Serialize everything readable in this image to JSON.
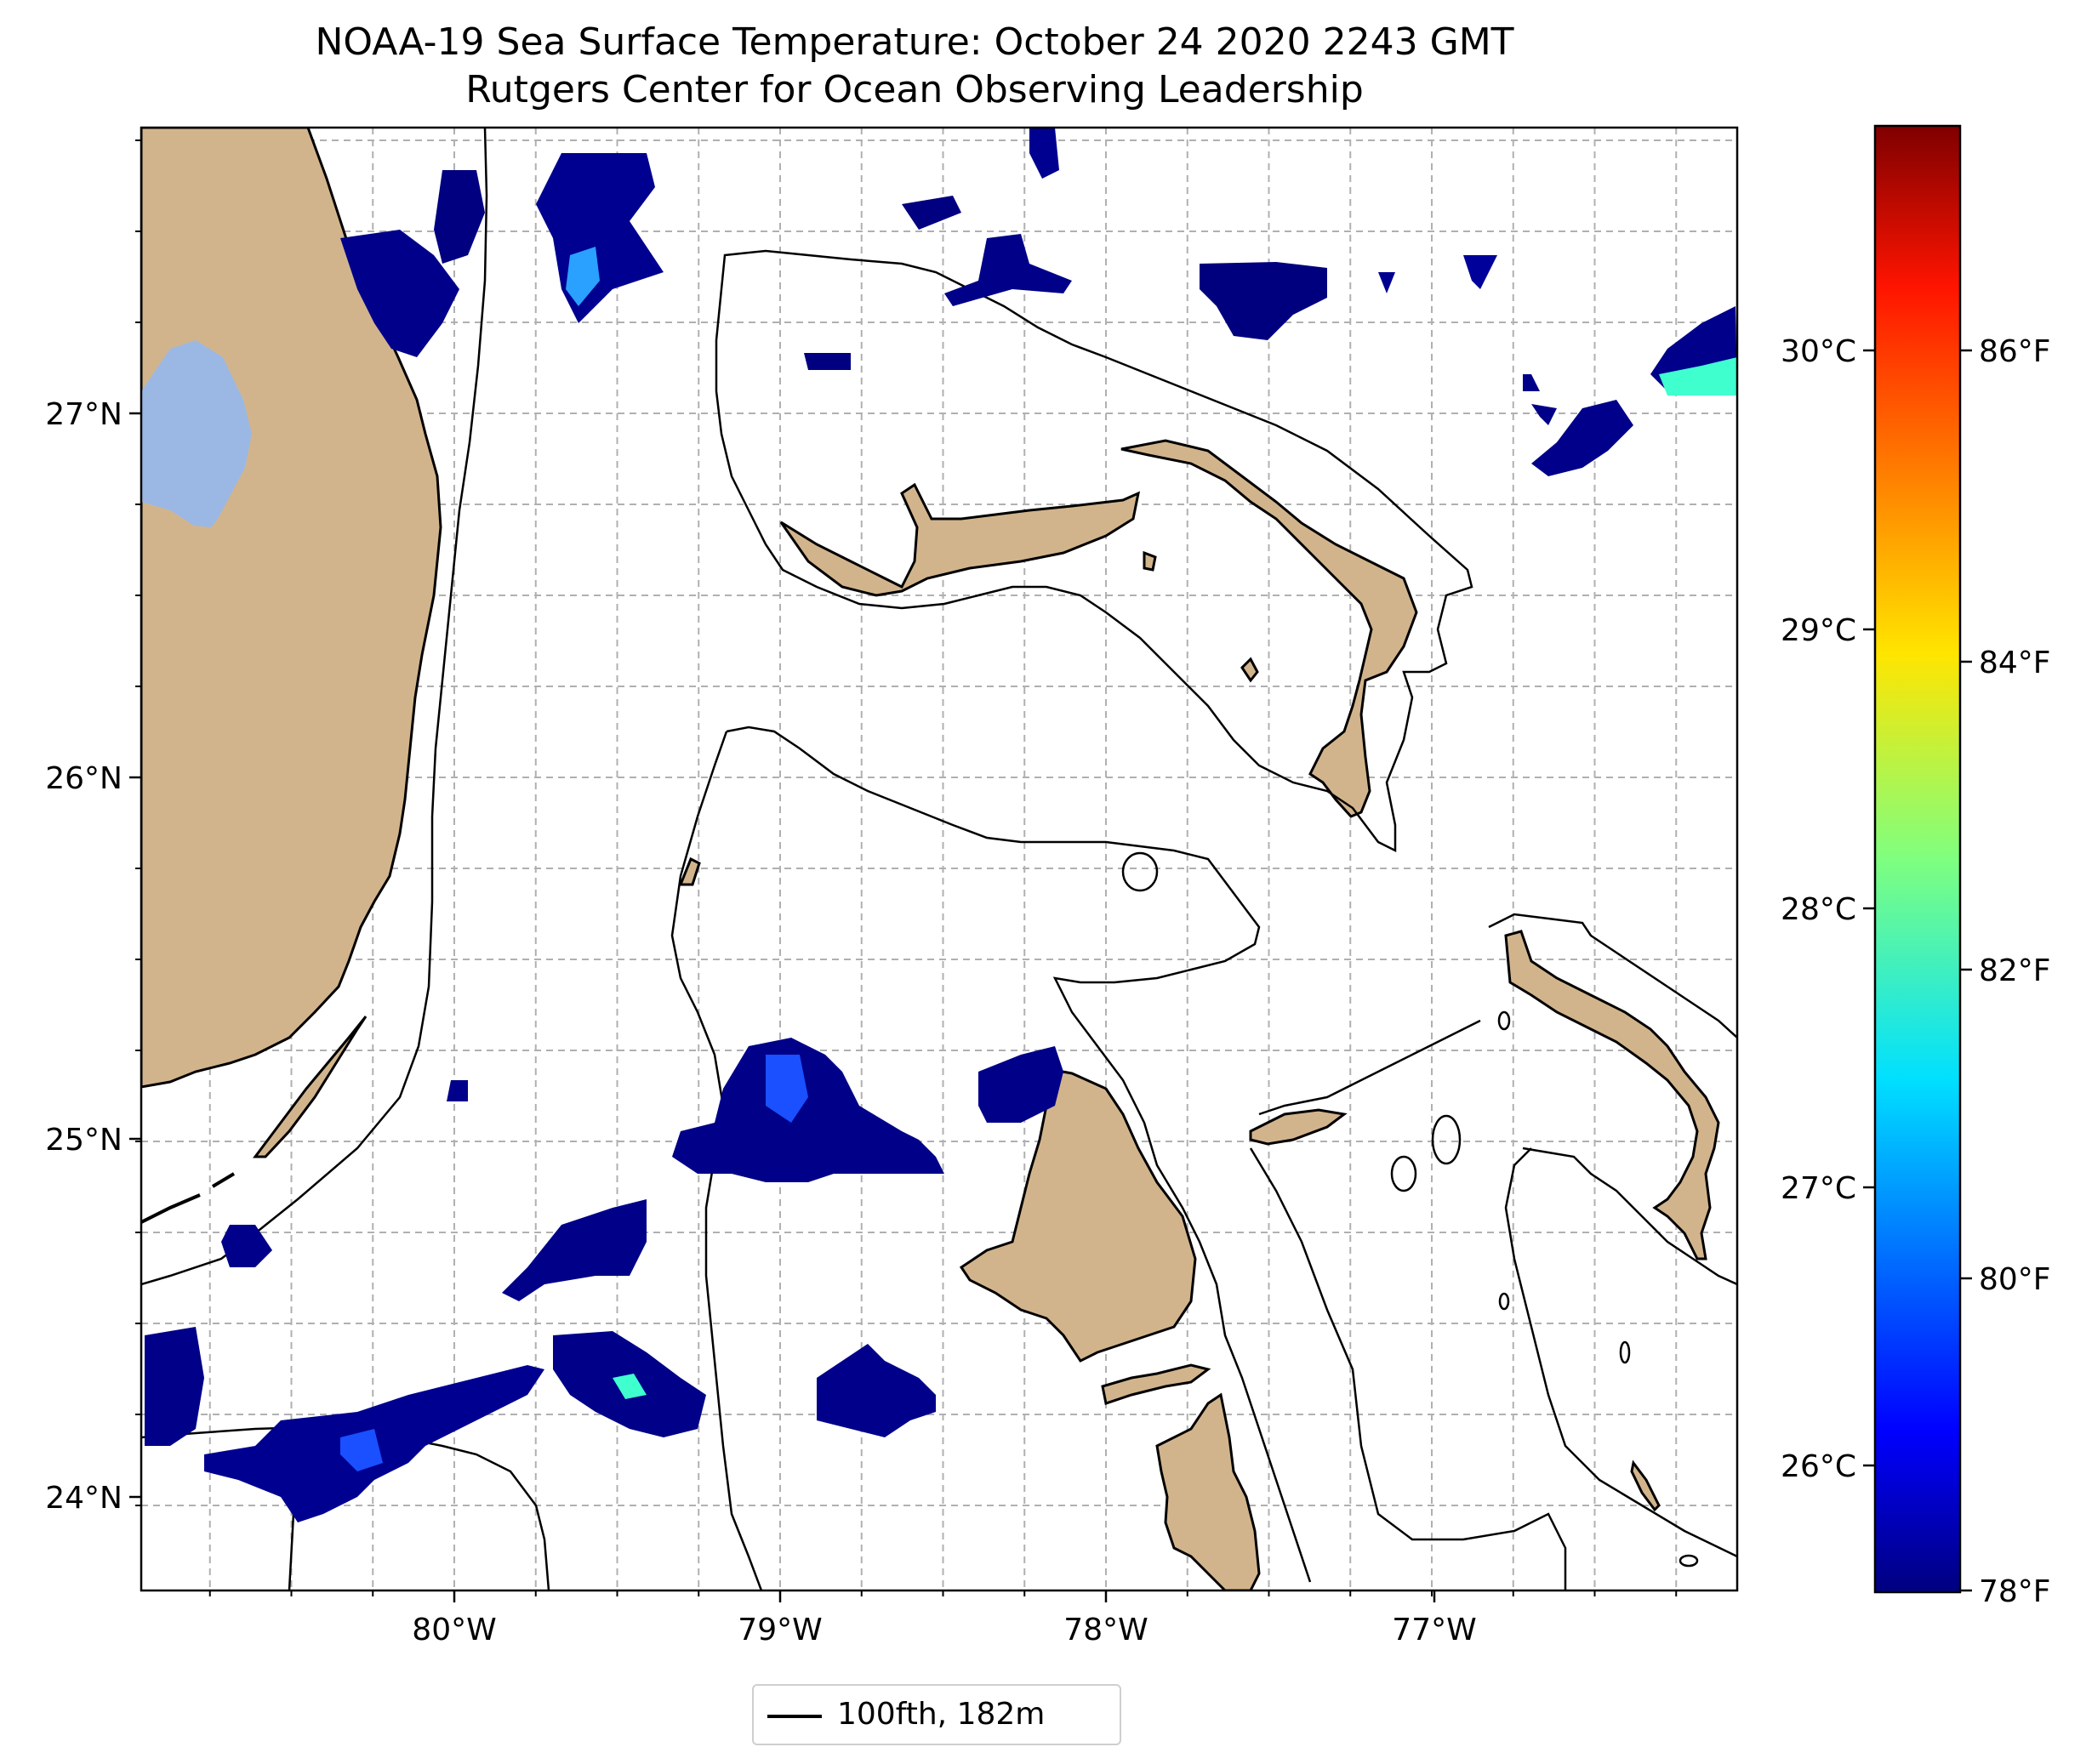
{
  "figure": {
    "title": "NOAA-19 Sea Surface Temperature: October 24 2020 2243 GMT",
    "subtitle": "Rutgers Center for Ocean Observing Leadership"
  },
  "map": {
    "lon_ticks": [
      "80°W",
      "79°W",
      "78°W",
      "77°W"
    ],
    "lat_ticks": [
      "27°N",
      "26°N",
      "25°N",
      "24°N"
    ],
    "gridlines": true,
    "land_color": "#d2b48c",
    "lake_color": "#9bb8e4",
    "coast_color": "#000000"
  },
  "colorbar": {
    "colormap": "jet",
    "celsius_ticks": [
      "30°C",
      "29°C",
      "28°C",
      "27°C",
      "26°C"
    ],
    "fahrenheit_ticks": [
      "86°F",
      "84°F",
      "82°F",
      "80°F",
      "78°F"
    ]
  },
  "legend": {
    "label": "100fth, 182m"
  },
  "chart_data": {
    "type": "heatmap",
    "title": "NOAA-19 Sea Surface Temperature: October 24 2020 2243 GMT",
    "subtitle": "Rutgers Center for Ocean Observing Leadership",
    "x_axis": {
      "label": "",
      "ticks": [
        "80°W",
        "79°W",
        "78°W",
        "77°W"
      ]
    },
    "y_axis": {
      "label": "",
      "ticks": [
        "27°N",
        "26°N",
        "25°N",
        "24°N"
      ]
    },
    "colorbar_celsius_ticks": [
      30,
      29,
      28,
      27,
      26
    ],
    "colorbar_fahrenheit_ticks": [
      86,
      84,
      82,
      80,
      78
    ],
    "legend": [
      "100fth, 182m"
    ],
    "legend_position": "bottom-center",
    "grid": true
  }
}
